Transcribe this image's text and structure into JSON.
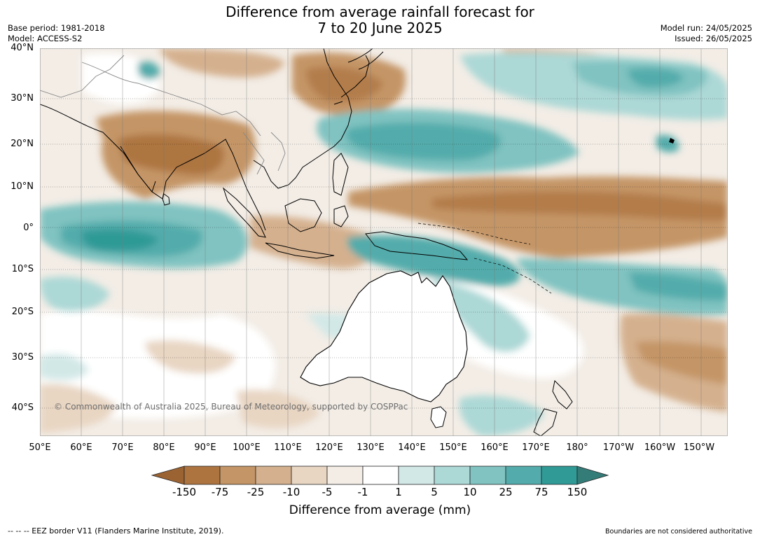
{
  "title": {
    "line1": "Difference from average rainfall forecast for",
    "line2": "7 to 20 June 2025"
  },
  "meta": {
    "base_period": "Base period: 1981-2018",
    "model": "Model: ACCESS-S2",
    "model_run": "Model run: 24/05/2025",
    "issued": "Issued: 26/05/2025"
  },
  "lat_labels": [
    "40°N",
    "30°N",
    "20°N",
    "10°N",
    "0°",
    "10°S",
    "20°S",
    "30°S",
    "40°S"
  ],
  "lon_labels": [
    "50°E",
    "60°E",
    "70°E",
    "80°E",
    "90°E",
    "100°E",
    "110°E",
    "120°E",
    "130°E",
    "140°E",
    "150°E",
    "160°E",
    "170°E",
    "180°",
    "170°W",
    "160°W",
    "150°W"
  ],
  "colorbar": {
    "ticks": [
      "-150",
      "-75",
      "-25",
      "-10",
      "-5",
      "-1",
      "1",
      "5",
      "10",
      "25",
      "75",
      "150"
    ],
    "colors": [
      "#9b6332",
      "#ad7440",
      "#c49566",
      "#d4b08e",
      "#e8d5c2",
      "#f3ede6",
      "#ffffff",
      "#d2e8e7",
      "#acd8d6",
      "#80c3c1",
      "#53acab",
      "#2f9a96",
      "#347c78"
    ],
    "title": "Difference from average (mm)"
  },
  "copyright": "© Commonwealth of Australia 2025, Bureau of Meteorology, supported by COSPPac",
  "footer": {
    "left": "--  --  -- EEZ border V11 (Flanders Marine Institute, 2019).",
    "right": "Boundaries are not considered authoritative"
  }
}
